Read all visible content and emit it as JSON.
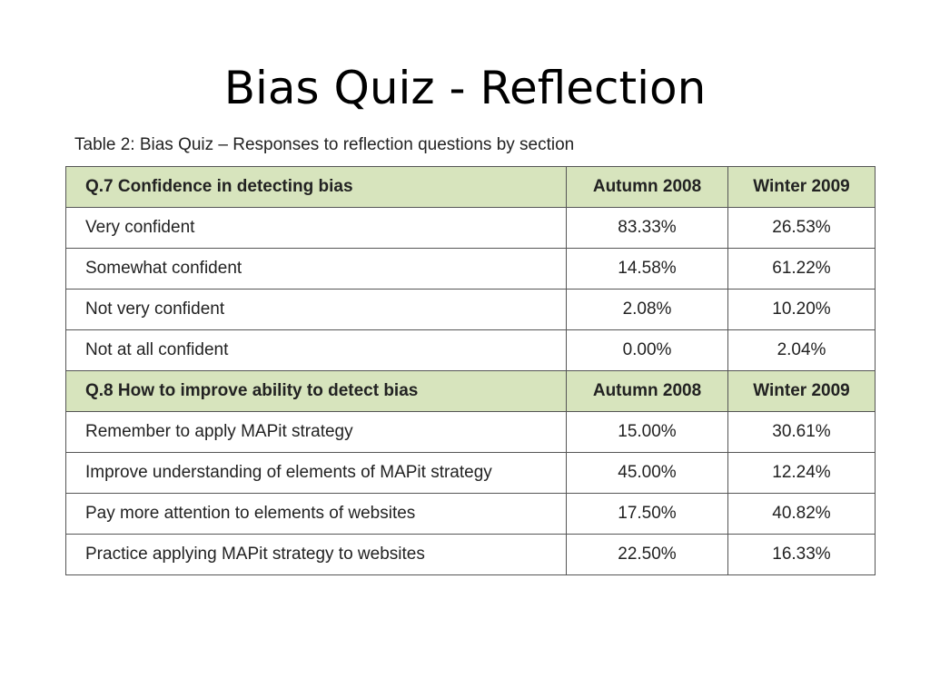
{
  "slide": {
    "title": "Bias Quiz - Reflection",
    "caption": "Table 2:  Bias Quiz – Responses to reflection questions by section"
  },
  "table": {
    "sections": [
      {
        "question": "Q.7  Confidence  in detecting  bias",
        "col1": "Autumn 2008",
        "col2": "Winter 2009",
        "rows": [
          {
            "label": "Very confident",
            "autumn": "83.33%",
            "winter": "26.53%"
          },
          {
            "label": "Somewhat confident",
            "autumn": "14.58%",
            "winter": "61.22%"
          },
          {
            "label": "Not very confident",
            "autumn": "2.08%",
            "winter": "10.20%"
          },
          {
            "label": "Not at all confident",
            "autumn": "0.00%",
            "winter": "2.04%"
          }
        ]
      },
      {
        "question": "Q.8  How to improve ability to detect bias",
        "col1": "Autumn 2008",
        "col2": "Winter 2009",
        "rows": [
          {
            "label": "Remember to apply MAPit strategy",
            "autumn": "15.00%",
            "winter": "30.61%"
          },
          {
            "label": "Improve understanding of elements of MAPit strategy",
            "autumn": "45.00%",
            "winter": "12.24%"
          },
          {
            "label": "Pay more attention to elements of websites",
            "autumn": "17.50%",
            "winter": "40.82%"
          },
          {
            "label": "Practice applying MAPit strategy to websites",
            "autumn": "22.50%",
            "winter": "16.33%"
          }
        ]
      }
    ]
  },
  "colors": {
    "header_bg": "#d7e4bd",
    "border": "#555555"
  }
}
